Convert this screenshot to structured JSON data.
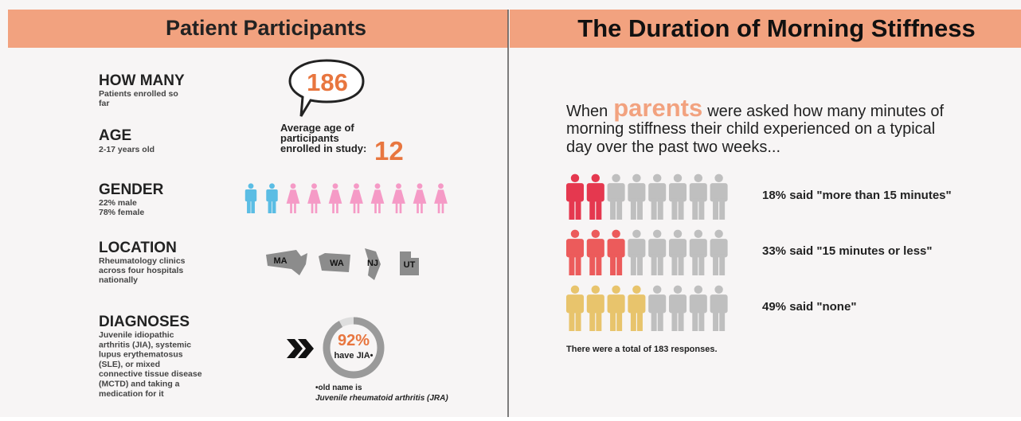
{
  "left": {
    "title": "Patient Participants",
    "how_many": {
      "heading": "HOW MANY",
      "lines": [
        "Patients enrolled so",
        "far"
      ],
      "count": "186"
    },
    "age": {
      "heading": "AGE",
      "lines": [
        "2-17 years old"
      ],
      "caption": [
        "Average age of",
        "participants",
        "enrolled in study:"
      ],
      "average": "12"
    },
    "gender": {
      "heading": "GENDER",
      "lines": [
        "22% male",
        "78% female"
      ],
      "male_icons": 2,
      "female_icons": 8
    },
    "location": {
      "heading": "LOCATION",
      "lines": [
        "Rheumatology clinics",
        "across four hospitals",
        "nationally"
      ],
      "states": [
        "MA",
        "WA",
        "NJ",
        "UT"
      ]
    },
    "diagnoses": {
      "heading": "DIAGNOSES",
      "lines": [
        "Juvenile idiopathic",
        "arthritis (JIA), systemic",
        "lupus erythematosus",
        "(SLE), or mixed",
        "connective tissue disease",
        "(MCTD) and taking a",
        "medication for it"
      ],
      "percent": {
        "value": 92,
        "label": "92%"
      },
      "percent_caption": "have JIA•",
      "note": [
        "•old name is",
        "Juvenile rheumatoid arthritis (JRA)"
      ]
    }
  },
  "right": {
    "title": "The Duration of Morning Stiffness",
    "intro_prefix": "When",
    "intro_highlight": "parents",
    "intro_lines": [
      "were asked how many minutes of",
      "morning stiffness their child experienced on a typical",
      "day over the past two weeks..."
    ],
    "rows": [
      {
        "highlighted": 2,
        "total": 8,
        "color": "#e5384f",
        "label": "18% said \"more than 15 minutes\""
      },
      {
        "highlighted": 3,
        "total": 8,
        "color": "#ec5b5b",
        "label": "33% said \"15 minutes or less\""
      },
      {
        "highlighted": 4,
        "total": 8,
        "color": "#e8c46c",
        "label": "49% said \"none\""
      }
    ],
    "footer": "There were a total of 183 responses."
  }
}
